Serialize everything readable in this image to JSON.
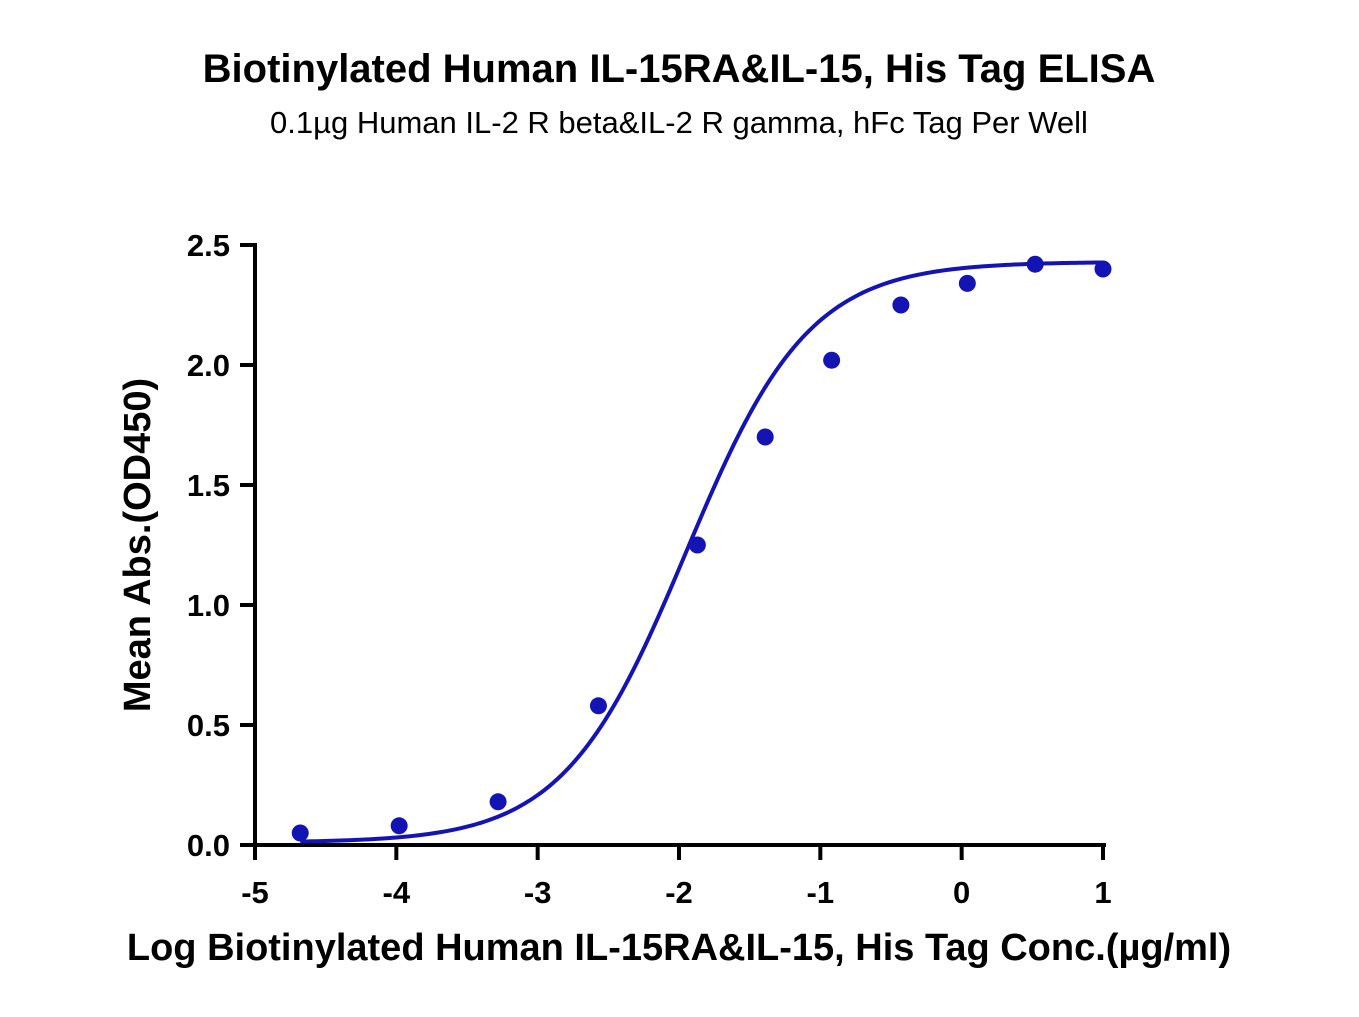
{
  "chart_data": {
    "type": "scatter",
    "title": "Biotinylated Human IL-15RA&IL-15, His Tag ELISA",
    "subtitle": "0.1µg Human IL-2 R beta&IL-2 R gamma, hFc Tag Per Well",
    "xlabel": "Log Biotinylated Human IL-15RA&IL-15, His Tag Conc.(µg/ml)",
    "ylabel": "Mean Abs.(OD450)",
    "xlim": [
      -5,
      1
    ],
    "ylim": [
      0,
      2.5
    ],
    "x_ticks": [
      "-5",
      "-4",
      "-3",
      "-2",
      "-1",
      "0",
      "1"
    ],
    "y_ticks": [
      "0.0",
      "0.5",
      "1.0",
      "1.5",
      "2.0",
      "2.5"
    ],
    "grid": false,
    "series": [
      {
        "name": "Mean Abs.",
        "color": "#1414b4",
        "x": [
          -4.68,
          -3.98,
          -3.28,
          -2.57,
          -1.87,
          -1.39,
          -0.92,
          -0.43,
          0.04,
          0.52,
          1.0
        ],
        "y": [
          0.05,
          0.08,
          0.18,
          0.58,
          1.25,
          1.7,
          2.02,
          2.25,
          2.34,
          2.42,
          2.4
        ]
      }
    ],
    "fit": {
      "model": "4PL",
      "bottom": 0.01,
      "top": 2.43,
      "logEC50": -1.95,
      "hill": 1.0
    }
  }
}
